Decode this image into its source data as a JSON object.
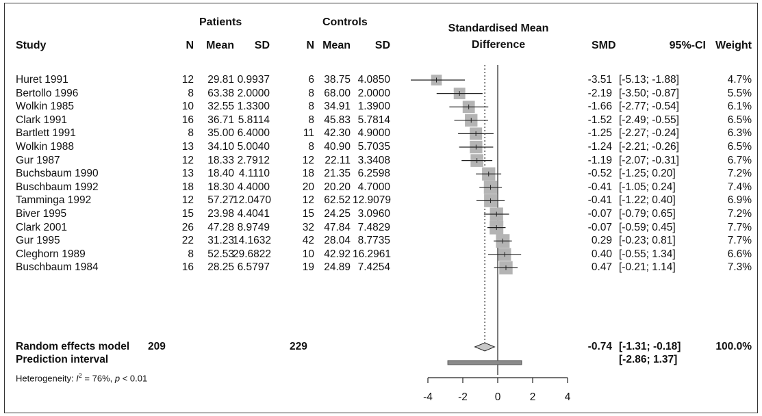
{
  "headers": {
    "study": "Study",
    "patients": "Patients",
    "controls": "Controls",
    "n": "N",
    "mean": "Mean",
    "sd": "SD",
    "smd_title_line1": "Standardised Mean",
    "smd_title_line2": "Difference",
    "smd": "SMD",
    "ci": "95%-CI",
    "weight": "Weight"
  },
  "studies": [
    {
      "study": "Huret 1991",
      "pn": "12",
      "pmean": "29.81",
      "psd": "0.9937",
      "cn": "6",
      "cmean": "38.75",
      "csd": "4.0850",
      "smd": "-3.51",
      "ci": "[-5.13; -1.88]",
      "weight": "4.7%"
    },
    {
      "study": "Bertollo 1996",
      "pn": "8",
      "pmean": "63.38",
      "psd": "2.0000",
      "cn": "8",
      "cmean": "68.00",
      "csd": "2.0000",
      "smd": "-2.19",
      "ci": "[-3.50; -0.87]",
      "weight": "5.5%"
    },
    {
      "study": "Wolkin 1985",
      "pn": "10",
      "pmean": "32.55",
      "psd": "1.3300",
      "cn": "8",
      "cmean": "34.91",
      "csd": "1.3900",
      "smd": "-1.66",
      "ci": "[-2.77; -0.54]",
      "weight": "6.1%"
    },
    {
      "study": "Clark 1991",
      "pn": "16",
      "pmean": "36.71",
      "psd": "5.8114",
      "cn": "8",
      "cmean": "45.83",
      "csd": "5.7814",
      "smd": "-1.52",
      "ci": "[-2.49; -0.55]",
      "weight": "6.5%"
    },
    {
      "study": "Bartlett 1991",
      "pn": "8",
      "pmean": "35.00",
      "psd": "6.4000",
      "cn": "11",
      "cmean": "42.30",
      "csd": "4.9000",
      "smd": "-1.25",
      "ci": "[-2.27; -0.24]",
      "weight": "6.3%"
    },
    {
      "study": "Wolkin 1988",
      "pn": "13",
      "pmean": "34.10",
      "psd": "5.0040",
      "cn": "8",
      "cmean": "40.90",
      "csd": "5.7035",
      "smd": "-1.24",
      "ci": "[-2.21; -0.26]",
      "weight": "6.5%"
    },
    {
      "study": "Gur 1987",
      "pn": "12",
      "pmean": "18.33",
      "psd": "2.7912",
      "cn": "12",
      "cmean": "22.11",
      "csd": "3.3408",
      "smd": "-1.19",
      "ci": "[-2.07; -0.31]",
      "weight": "6.7%"
    },
    {
      "study": "Buchsbaum 1990",
      "pn": "13",
      "pmean": "18.40",
      "psd": "4.1110",
      "cn": "18",
      "cmean": "21.35",
      "csd": "6.2598",
      "smd": "-0.52",
      "ci": "[-1.25; 0.20]",
      "weight": "7.2%"
    },
    {
      "study": "Buschbaum 1992",
      "pn": "18",
      "pmean": "18.30",
      "psd": "4.4000",
      "cn": "20",
      "cmean": "20.20",
      "csd": "4.7000",
      "smd": "-0.41",
      "ci": "[-1.05; 0.24]",
      "weight": "7.4%"
    },
    {
      "study": "Tamminga 1992",
      "pn": "12",
      "pmean": "57.27",
      "psd": "12.0470",
      "cn": "12",
      "cmean": "62.52",
      "csd": "12.9079",
      "smd": "-0.41",
      "ci": "[-1.22; 0.40]",
      "weight": "6.9%"
    },
    {
      "study": "Biver 1995",
      "pn": "15",
      "pmean": "23.98",
      "psd": "4.4041",
      "cn": "15",
      "cmean": "24.25",
      "csd": "3.0960",
      "smd": "-0.07",
      "ci": "[-0.79; 0.65]",
      "weight": "7.2%"
    },
    {
      "study": "Clark 2001",
      "pn": "26",
      "pmean": "47.28",
      "psd": "8.9749",
      "cn": "32",
      "cmean": "47.84",
      "csd": "7.4829",
      "smd": "-0.07",
      "ci": "[-0.59; 0.45]",
      "weight": "7.7%"
    },
    {
      "study": "Gur 1995",
      "pn": "22",
      "pmean": "31.23",
      "psd": "14.1632",
      "cn": "42",
      "cmean": "28.04",
      "csd": "8.7735",
      "smd": "0.29",
      "ci": "[-0.23; 0.81]",
      "weight": "7.7%"
    },
    {
      "study": "Cleghorn 1989",
      "pn": "8",
      "pmean": "52.53",
      "psd": "29.6822",
      "cn": "10",
      "cmean": "42.92",
      "csd": "16.2961",
      "smd": "0.40",
      "ci": "[-0.55; 1.34]",
      "weight": "6.6%"
    },
    {
      "study": "Buschbaum 1984",
      "pn": "16",
      "pmean": "28.25",
      "psd": "6.5797",
      "cn": "19",
      "cmean": "24.89",
      "csd": "7.4254",
      "smd": "0.47",
      "ci": "[-0.21; 1.14]",
      "weight": "7.3%"
    }
  ],
  "summary": {
    "label": "Random effects model",
    "patients_n": "209",
    "controls_n": "229",
    "smd": "-0.74",
    "ci": "[-1.31; -0.18]",
    "weight": "100.0%"
  },
  "prediction": {
    "label": "Prediction interval",
    "ci": "[-2.86; 1.37]"
  },
  "heterogeneity": {
    "prefix": "Heterogeneity: ",
    "i_symbol": "I",
    "superscript": "2",
    "value": " = 76%, ",
    "p_symbol": "p",
    "p_value": " < 0.01"
  },
  "chart_data": {
    "type": "forest",
    "xlim": [
      -4,
      4
    ],
    "ticks": [
      -4,
      -2,
      0,
      2,
      4
    ],
    "tick_labels": [
      "-4",
      "-2",
      "0",
      "2",
      "4"
    ],
    "reference_line": 0,
    "summary_line": -0.74,
    "estimates": [
      {
        "smd": -3.51,
        "lower": -5.13,
        "upper": -1.88,
        "weight": 4.7
      },
      {
        "smd": -2.19,
        "lower": -3.5,
        "upper": -0.87,
        "weight": 5.5
      },
      {
        "smd": -1.66,
        "lower": -2.77,
        "upper": -0.54,
        "weight": 6.1
      },
      {
        "smd": -1.52,
        "lower": -2.49,
        "upper": -0.55,
        "weight": 6.5
      },
      {
        "smd": -1.25,
        "lower": -2.27,
        "upper": -0.24,
        "weight": 6.3
      },
      {
        "smd": -1.24,
        "lower": -2.21,
        "upper": -0.26,
        "weight": 6.5
      },
      {
        "smd": -1.19,
        "lower": -2.07,
        "upper": -0.31,
        "weight": 6.7
      },
      {
        "smd": -0.52,
        "lower": -1.25,
        "upper": 0.2,
        "weight": 7.2
      },
      {
        "smd": -0.41,
        "lower": -1.05,
        "upper": 0.24,
        "weight": 7.4
      },
      {
        "smd": -0.41,
        "lower": -1.22,
        "upper": 0.4,
        "weight": 6.9
      },
      {
        "smd": -0.07,
        "lower": -0.79,
        "upper": 0.65,
        "weight": 7.2
      },
      {
        "smd": -0.07,
        "lower": -0.59,
        "upper": 0.45,
        "weight": 7.7
      },
      {
        "smd": 0.29,
        "lower": -0.23,
        "upper": 0.81,
        "weight": 7.7
      },
      {
        "smd": 0.4,
        "lower": -0.55,
        "upper": 1.34,
        "weight": 6.6
      },
      {
        "smd": 0.47,
        "lower": -0.21,
        "upper": 1.14,
        "weight": 7.3
      }
    ],
    "summary": {
      "smd": -0.74,
      "lower": -1.31,
      "upper": -0.18
    },
    "prediction_interval": {
      "lower": -2.86,
      "upper": 1.37
    },
    "colors": {
      "square": "#b4b4b4",
      "diamond": "#c8c8c8",
      "prediction": "#8a8a8a",
      "line": "#222222"
    }
  }
}
